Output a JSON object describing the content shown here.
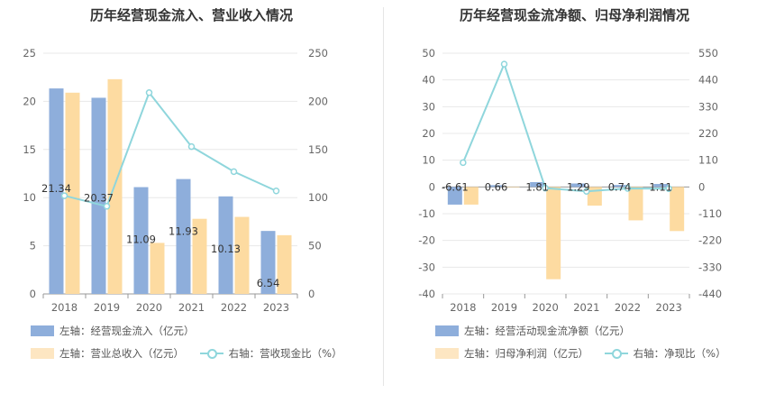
{
  "chart_data": [
    {
      "id": "left",
      "type": "bar",
      "title": "历年经营现金流入、营业收入情况",
      "categories": [
        "2018",
        "2019",
        "2020",
        "2021",
        "2022",
        "2023"
      ],
      "left_axis": {
        "min": 0,
        "max": 25,
        "ticks": [
          "0",
          "5",
          "10",
          "15",
          "20",
          "25"
        ]
      },
      "right_axis": {
        "min": 0,
        "max": 250,
        "ticks": [
          "0",
          "50",
          "100",
          "150",
          "200",
          "250"
        ]
      },
      "series": [
        {
          "name": "左轴：经营现金流入（亿元）",
          "kind": "bar",
          "axis": "left",
          "color": "#8eaedb",
          "values": [
            21.34,
            20.37,
            11.09,
            11.93,
            10.13,
            6.54
          ],
          "labels": [
            "21.34",
            "20.37",
            "11.09",
            "11.93",
            "10.13",
            "6.54"
          ]
        },
        {
          "name": "左轴：营业总收入（亿元）",
          "kind": "bar",
          "axis": "left",
          "color": "#fddba1",
          "values": [
            20.9,
            22.3,
            5.3,
            7.8,
            8.0,
            6.1
          ]
        },
        {
          "name": "右轴：营收现金比（%）",
          "kind": "line",
          "axis": "right",
          "color": "#8fd6dc",
          "values": [
            102,
            91,
            209,
            153,
            127,
            107
          ]
        }
      ],
      "legend": "bottom-left",
      "grid": true
    },
    {
      "id": "right",
      "type": "bar",
      "title": "历年经营现金流净额、归母净利润情况",
      "categories": [
        "2018",
        "2019",
        "2020",
        "2021",
        "2022",
        "2023"
      ],
      "left_axis": {
        "min": -40,
        "max": 50,
        "ticks": [
          "-40",
          "-30",
          "-20",
          "-10",
          "0",
          "10",
          "20",
          "30",
          "40",
          "50"
        ]
      },
      "right_axis": {
        "min": -440,
        "max": 550,
        "ticks": [
          "-440",
          "-330",
          "-220",
          "-110",
          "0",
          "110",
          "220",
          "330",
          "440",
          "550"
        ]
      },
      "series": [
        {
          "name": "左轴：经营活动现金流净额（亿元）",
          "kind": "bar",
          "axis": "left",
          "color": "#8eaedb",
          "values": [
            -6.61,
            0.66,
            1.81,
            1.29,
            0.74,
            1.11
          ],
          "labels": [
            "-6.61",
            "0.66",
            "1.81",
            "1.29",
            "0.74",
            "1.11"
          ]
        },
        {
          "name": "左轴：归母净利润（亿元）",
          "kind": "bar",
          "axis": "left",
          "color": "#fddba1",
          "values": [
            -6.6,
            -0.2,
            -34.5,
            -7.0,
            -12.5,
            -16.5
          ]
        },
        {
          "name": "右轴：净现比（%）",
          "kind": "line",
          "axis": "right",
          "color": "#8fd6dc",
          "values": [
            100,
            505,
            -5,
            -18,
            -6,
            -7
          ]
        }
      ],
      "legend": "bottom-left",
      "grid": true
    }
  ]
}
